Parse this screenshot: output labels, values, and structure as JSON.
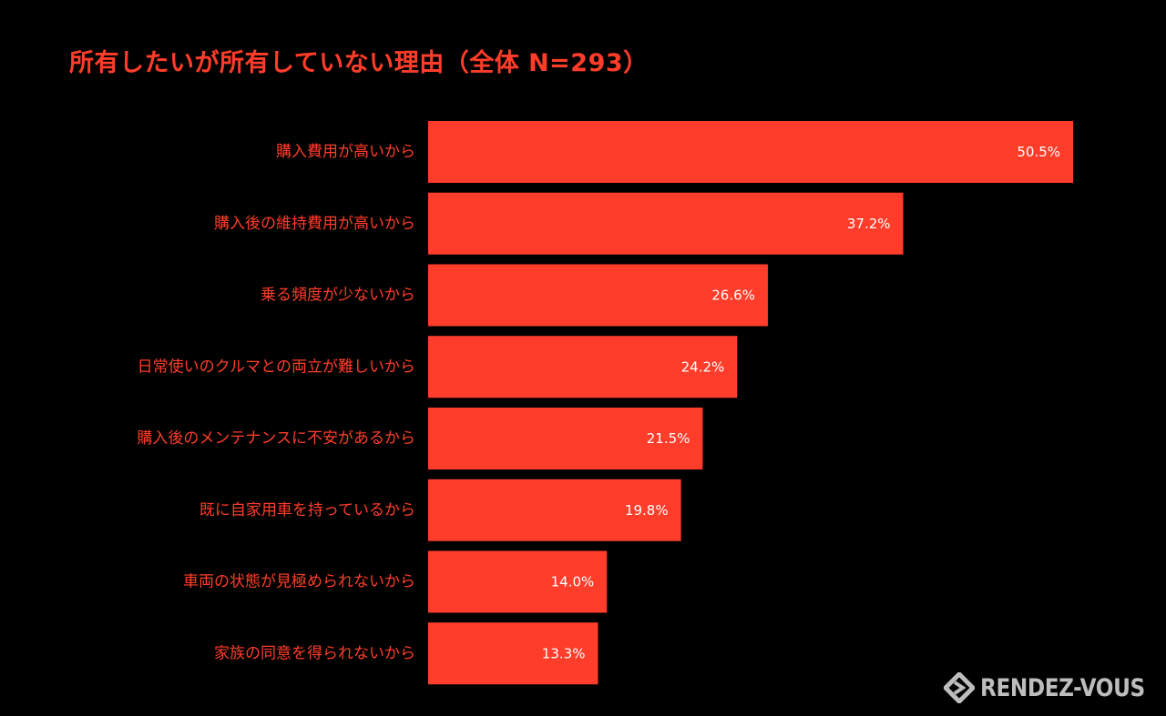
{
  "title": "所有したいが所有していない理由（全体 N=293）",
  "chart_data": {
    "type": "bar",
    "orientation": "horizontal",
    "categories": [
      "購入費用が高いから",
      "購入後の維持費用が高いから",
      "乗る頻度が少ないから",
      "日常使いのクルマとの両立が難しいから",
      "購入後のメンテナンスに不安があるから",
      "既に自家用車を持っているから",
      "車両の状態が見極められないから",
      "家族の同意を得られないから"
    ],
    "values": [
      50.5,
      37.2,
      26.6,
      24.2,
      21.5,
      19.8,
      14.0,
      13.3
    ],
    "value_labels": [
      "50.5%",
      "37.2%",
      "26.6%",
      "24.2%",
      "21.5%",
      "19.8%",
      "14.0%",
      "13.3%"
    ],
    "xlim": [
      0,
      50.5
    ],
    "grid": false,
    "colors": {
      "background": "#000000",
      "bar": "#ff3d2a",
      "category_text": "#ff3d2a",
      "value_text": "#ffffff",
      "title": "#ff3d2a"
    }
  },
  "brand": {
    "logo_text": "RENDEZ-VOUS",
    "logo_icon": "rendez-vous-logo-icon",
    "logo_color": "#bdbdbd"
  }
}
